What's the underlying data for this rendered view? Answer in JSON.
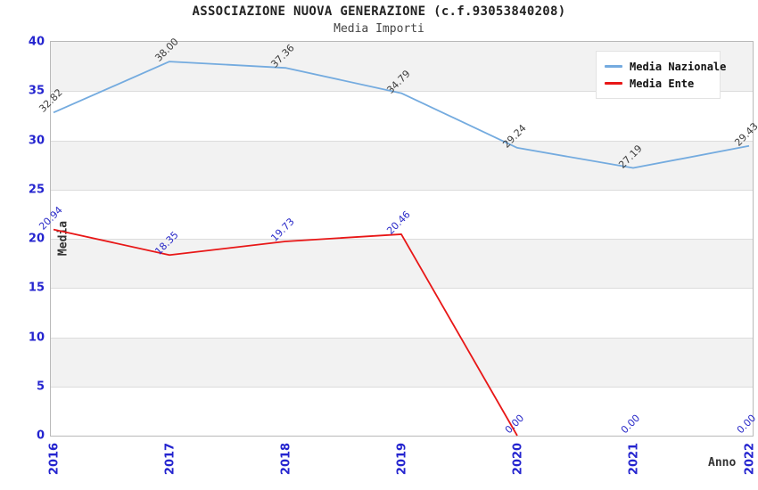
{
  "header": {
    "title": "ASSOCIAZIONE NUOVA GENERAZIONE (c.f.93053840208)",
    "subtitle": "Media Importi"
  },
  "chart_data": {
    "type": "line",
    "categories": [
      "2016",
      "2017",
      "2018",
      "2019",
      "2020",
      "2021",
      "2022"
    ],
    "series": [
      {
        "name": "Media Nazionale",
        "color": "#74abdf",
        "label_color": "#3d3d3d",
        "values": [
          32.82,
          38.0,
          37.36,
          34.79,
          29.24,
          27.19,
          29.43
        ]
      },
      {
        "name": "Media Ente",
        "color": "#e81717",
        "label_color": "#2a2ac8",
        "values": [
          20.94,
          18.35,
          19.73,
          20.46,
          0.0,
          0.0,
          0.0
        ]
      }
    ],
    "xlabel": "Anno",
    "ylabel": "Media",
    "ylim": [
      0,
      40
    ],
    "yticks": [
      0,
      5,
      10,
      15,
      20,
      25,
      30,
      35,
      40
    ],
    "grid": true,
    "legend_position": "top-right",
    "tick_color": "#2424cf",
    "band_colors": [
      "#ffffff",
      "#f2f2f2"
    ],
    "gridline_color": "#dcdcdc"
  }
}
